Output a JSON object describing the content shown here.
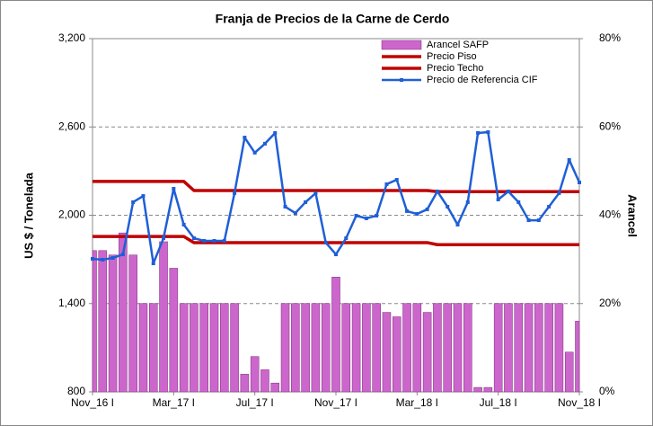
{
  "chart_data": {
    "type": "combo",
    "title": "Franja de Precios de la Carne de Cerdo",
    "ylabel": "US $ / Tonelada",
    "y2label": "Arancel",
    "categories": [
      "Nov_16 I",
      null,
      null,
      null,
      null,
      null,
      null,
      null,
      "Mar_17 I",
      null,
      null,
      null,
      null,
      null,
      null,
      null,
      "Jul_17 I",
      null,
      null,
      null,
      null,
      null,
      null,
      null,
      "Nov_17 I",
      null,
      null,
      null,
      null,
      null,
      null,
      null,
      "Mar_18 I",
      null,
      null,
      null,
      null,
      null,
      null,
      null,
      "Jul_18 I",
      null,
      null,
      null,
      null,
      null,
      null,
      null,
      "Nov_18 I"
    ],
    "ylim": [
      800,
      3200
    ],
    "yticks": [
      800,
      {
        "value": 1400,
        "label": "1,400"
      },
      {
        "value": 2000,
        "label": "2,000"
      },
      {
        "value": 2600,
        "label": "2,600"
      },
      {
        "value": 3200,
        "label": "3,200"
      }
    ],
    "y2lim": [
      0,
      80
    ],
    "y2ticks": [
      {
        "value": 0,
        "label": "0%"
      },
      {
        "value": 20,
        "label": "20%"
      },
      {
        "value": 40,
        "label": "40%"
      },
      {
        "value": 60,
        "label": "60%"
      },
      {
        "value": 80,
        "label": "80%"
      }
    ],
    "grid": true,
    "legend": "top-right",
    "series": [
      {
        "name": "Arancel SAFP",
        "type": "bar",
        "axis": "y2",
        "color": "#cc66cc",
        "values": [
          32,
          32,
          31,
          36,
          31,
          20,
          20,
          34,
          28,
          20,
          20,
          20,
          20,
          20,
          20,
          4,
          8,
          5,
          2,
          20,
          20,
          20,
          20,
          20,
          26,
          20,
          20,
          20,
          20,
          18,
          17,
          20,
          20,
          18,
          20,
          20,
          20,
          20,
          1,
          1,
          20,
          20,
          20,
          20,
          20,
          20,
          20,
          9,
          16
        ]
      },
      {
        "name": "Precio Piso",
        "type": "line",
        "color": "#c00000",
        "values": [
          1856,
          1856,
          1856,
          1856,
          1856,
          1856,
          1856,
          1856,
          1856,
          1856,
          1814,
          1814,
          1814,
          1814,
          1814,
          1814,
          1814,
          1814,
          1814,
          1814,
          1814,
          1814,
          1814,
          1814,
          1814,
          1814,
          1814,
          1814,
          1814,
          1814,
          1814,
          1814,
          1814,
          1814,
          1800,
          1800,
          1800,
          1800,
          1800,
          1800,
          1800,
          1800,
          1800,
          1800,
          1800,
          1800,
          1800,
          1800,
          1800
        ]
      },
      {
        "name": "Precio Techo",
        "type": "line",
        "color": "#c00000",
        "values": [
          2230,
          2230,
          2230,
          2230,
          2230,
          2230,
          2230,
          2230,
          2230,
          2230,
          2168,
          2168,
          2168,
          2168,
          2168,
          2168,
          2168,
          2168,
          2168,
          2168,
          2168,
          2168,
          2168,
          2168,
          2168,
          2168,
          2168,
          2168,
          2168,
          2168,
          2168,
          2168,
          2168,
          2168,
          2160,
          2160,
          2160,
          2160,
          2160,
          2160,
          2160,
          2160,
          2160,
          2160,
          2160,
          2160,
          2160,
          2160,
          2160
        ]
      },
      {
        "name": "Precio de Referencia CIF",
        "type": "line",
        "markers": true,
        "color": "#1f5fd6",
        "values": [
          1704,
          1698,
          1710,
          1734,
          2089,
          2131,
          1673,
          1844,
          2180,
          1936,
          1844,
          1826,
          1826,
          1826,
          2150,
          2528,
          2425,
          2486,
          2559,
          2058,
          2015,
          2089,
          2150,
          1814,
          1734,
          1844,
          1997,
          1979,
          1997,
          2211,
          2241,
          2028,
          2009,
          2040,
          2162,
          2058,
          1936,
          2089,
          2559,
          2565,
          2107,
          2162,
          2089,
          1966,
          1966,
          2058,
          2150,
          2376,
          2223
        ]
      }
    ]
  }
}
